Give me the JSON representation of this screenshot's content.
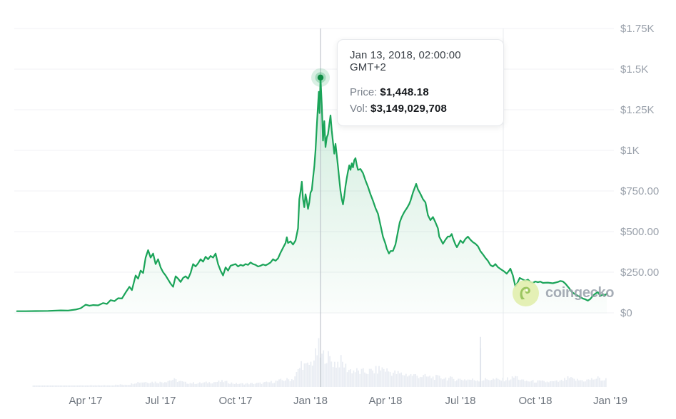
{
  "tooltip": {
    "title": "Jan 13, 2018, 02:00:00 GMT+2",
    "price_label": "Price:",
    "price_value": "$1,448.18",
    "vol_label": "Vol:",
    "vol_value": "$3,149,029,708"
  },
  "watermark": {
    "text": "coingecko",
    "icon": "gecko-icon"
  },
  "chart_data": {
    "type": "line",
    "title": "",
    "legend": false,
    "grid": true,
    "x_axis": {
      "unit": "months_since_jan_2017",
      "tick_labels": [
        "Apr '17",
        "Jul '17",
        "Oct '17",
        "Jan '18",
        "Apr '18",
        "Jul '18",
        "Oct '18",
        "Jan '19"
      ],
      "tick_months": [
        3,
        6,
        9,
        12,
        15,
        18,
        21,
        24
      ],
      "range_months": [
        0.25,
        23.86
      ]
    },
    "y_axis": {
      "unit": "USD",
      "tick_labels": [
        "$0",
        "$250.00",
        "$500.00",
        "$750.00",
        "$1K",
        "$1.25K",
        "$1.5K",
        "$1.75K"
      ],
      "tick_values": [
        0,
        250,
        500,
        750,
        1000,
        1250,
        1500,
        1750
      ],
      "range": [
        0,
        1750
      ],
      "side": "right"
    },
    "highlight": {
      "month": 12.4,
      "date_label": "Jan 13, 2018, 02:00:00 GMT+2",
      "price_usd": 1448.18,
      "volume_usd": 3149029708
    },
    "series": [
      {
        "name": "Price (USD)",
        "points": [
          [
            0.25,
            10
          ],
          [
            0.6,
            10
          ],
          [
            1.0,
            11
          ],
          [
            1.5,
            12
          ],
          [
            2.0,
            15
          ],
          [
            2.3,
            14
          ],
          [
            2.6,
            20
          ],
          [
            2.8,
            28
          ],
          [
            3.0,
            50
          ],
          [
            3.15,
            44
          ],
          [
            3.3,
            48
          ],
          [
            3.5,
            46
          ],
          [
            3.7,
            60
          ],
          [
            3.85,
            55
          ],
          [
            4.0,
            78
          ],
          [
            4.15,
            72
          ],
          [
            4.3,
            90
          ],
          [
            4.45,
            88
          ],
          [
            4.6,
            125
          ],
          [
            4.75,
            160
          ],
          [
            4.85,
            140
          ],
          [
            5.0,
            230
          ],
          [
            5.1,
            210
          ],
          [
            5.2,
            260
          ],
          [
            5.3,
            245
          ],
          [
            5.4,
            340
          ],
          [
            5.5,
            386
          ],
          [
            5.6,
            340
          ],
          [
            5.7,
            365
          ],
          [
            5.8,
            300
          ],
          [
            5.9,
            330
          ],
          [
            6.0,
            280
          ],
          [
            6.1,
            250
          ],
          [
            6.2,
            230
          ],
          [
            6.3,
            205
          ],
          [
            6.4,
            180
          ],
          [
            6.5,
            160
          ],
          [
            6.6,
            225
          ],
          [
            6.7,
            210
          ],
          [
            6.8,
            190
          ],
          [
            6.9,
            215
          ],
          [
            7.0,
            225
          ],
          [
            7.1,
            210
          ],
          [
            7.2,
            245
          ],
          [
            7.3,
            300
          ],
          [
            7.4,
            285
          ],
          [
            7.5,
            305
          ],
          [
            7.6,
            330
          ],
          [
            7.7,
            315
          ],
          [
            7.8,
            345
          ],
          [
            7.9,
            330
          ],
          [
            8.0,
            350
          ],
          [
            8.1,
            340
          ],
          [
            8.2,
            365
          ],
          [
            8.3,
            300
          ],
          [
            8.4,
            260
          ],
          [
            8.5,
            230
          ],
          [
            8.6,
            280
          ],
          [
            8.7,
            260
          ],
          [
            8.8,
            290
          ],
          [
            8.9,
            295
          ],
          [
            9.0,
            300
          ],
          [
            9.1,
            285
          ],
          [
            9.2,
            295
          ],
          [
            9.3,
            290
          ],
          [
            9.4,
            300
          ],
          [
            9.5,
            295
          ],
          [
            9.6,
            310
          ],
          [
            9.7,
            300
          ],
          [
            9.8,
            295
          ],
          [
            9.9,
            285
          ],
          [
            10.0,
            290
          ],
          [
            10.1,
            298
          ],
          [
            10.2,
            292
          ],
          [
            10.3,
            300
          ],
          [
            10.4,
            310
          ],
          [
            10.5,
            330
          ],
          [
            10.6,
            320
          ],
          [
            10.7,
            335
          ],
          [
            10.8,
            370
          ],
          [
            10.9,
            400
          ],
          [
            11.0,
            430
          ],
          [
            11.05,
            465
          ],
          [
            11.1,
            430
          ],
          [
            11.2,
            440
          ],
          [
            11.3,
            420
          ],
          [
            11.4,
            445
          ],
          [
            11.5,
            520
          ],
          [
            11.55,
            700
          ],
          [
            11.6,
            745
          ],
          [
            11.65,
            807
          ],
          [
            11.7,
            700
          ],
          [
            11.75,
            650
          ],
          [
            11.8,
            730
          ],
          [
            11.85,
            690
          ],
          [
            11.9,
            640
          ],
          [
            11.95,
            680
          ],
          [
            12.0,
            740
          ],
          [
            12.05,
            755
          ],
          [
            12.1,
            830
          ],
          [
            12.15,
            900
          ],
          [
            12.2,
            1000
          ],
          [
            12.25,
            1150
          ],
          [
            12.3,
            1280
          ],
          [
            12.33,
            1360
          ],
          [
            12.36,
            1230
          ],
          [
            12.4,
            1448
          ],
          [
            12.45,
            1280
          ],
          [
            12.5,
            1060
          ],
          [
            12.55,
            1180
          ],
          [
            12.6,
            1020
          ],
          [
            12.65,
            1080
          ],
          [
            12.7,
            1100
          ],
          [
            12.75,
            1160
          ],
          [
            12.8,
            1215
          ],
          [
            12.85,
            1120
          ],
          [
            12.9,
            1050
          ],
          [
            12.95,
            980
          ],
          [
            13.0,
            1040
          ],
          [
            13.05,
            970
          ],
          [
            13.1,
            900
          ],
          [
            13.15,
            820
          ],
          [
            13.2,
            750
          ],
          [
            13.25,
            700
          ],
          [
            13.3,
            667
          ],
          [
            13.35,
            720
          ],
          [
            13.4,
            780
          ],
          [
            13.45,
            830
          ],
          [
            13.5,
            870
          ],
          [
            13.55,
            908
          ],
          [
            13.6,
            880
          ],
          [
            13.65,
            920
          ],
          [
            13.7,
            895
          ],
          [
            13.75,
            940
          ],
          [
            13.8,
            952
          ],
          [
            13.85,
            910
          ],
          [
            13.9,
            880
          ],
          [
            14.0,
            885
          ],
          [
            14.1,
            860
          ],
          [
            14.2,
            815
          ],
          [
            14.3,
            776
          ],
          [
            14.4,
            730
          ],
          [
            14.5,
            690
          ],
          [
            14.6,
            645
          ],
          [
            14.7,
            610
          ],
          [
            14.8,
            540
          ],
          [
            14.9,
            469
          ],
          [
            15.0,
            425
          ],
          [
            15.05,
            395
          ],
          [
            15.14,
            365
          ],
          [
            15.2,
            380
          ],
          [
            15.3,
            381
          ],
          [
            15.4,
            420
          ],
          [
            15.5,
            500
          ],
          [
            15.57,
            557
          ],
          [
            15.65,
            590
          ],
          [
            15.75,
            620
          ],
          [
            15.86,
            645
          ],
          [
            15.95,
            670
          ],
          [
            16.0,
            689
          ],
          [
            16.1,
            740
          ],
          [
            16.23,
            794
          ],
          [
            16.3,
            760
          ],
          [
            16.4,
            732
          ],
          [
            16.5,
            700
          ],
          [
            16.6,
            680
          ],
          [
            16.7,
            601
          ],
          [
            16.8,
            570
          ],
          [
            16.9,
            590
          ],
          [
            17.0,
            557
          ],
          [
            17.1,
            520
          ],
          [
            17.15,
            469
          ],
          [
            17.25,
            440
          ],
          [
            17.3,
            425
          ],
          [
            17.4,
            450
          ],
          [
            17.5,
            470
          ],
          [
            17.57,
            469
          ],
          [
            17.65,
            485
          ],
          [
            17.7,
            460
          ],
          [
            17.8,
            420
          ],
          [
            17.86,
            404
          ],
          [
            17.95,
            430
          ],
          [
            18.0,
            445
          ],
          [
            18.1,
            430
          ],
          [
            18.2,
            455
          ],
          [
            18.3,
            469
          ],
          [
            18.4,
            450
          ],
          [
            18.5,
            435
          ],
          [
            18.6,
            425
          ],
          [
            18.7,
            410
          ],
          [
            18.8,
            380
          ],
          [
            18.9,
            360
          ],
          [
            19.0,
            338
          ],
          [
            19.1,
            320
          ],
          [
            19.2,
            294
          ],
          [
            19.3,
            285
          ],
          [
            19.4,
            300
          ],
          [
            19.5,
            281
          ],
          [
            19.6,
            270
          ],
          [
            19.75,
            255
          ],
          [
            19.85,
            241
          ],
          [
            19.95,
            260
          ],
          [
            20.0,
            272
          ],
          [
            20.1,
            230
          ],
          [
            20.2,
            162
          ],
          [
            20.3,
            190
          ],
          [
            20.37,
            215
          ],
          [
            20.5,
            205
          ],
          [
            20.6,
            197
          ],
          [
            20.7,
            205
          ],
          [
            20.8,
            190
          ],
          [
            20.9,
            184
          ],
          [
            21.0,
            193
          ],
          [
            21.1,
            188
          ],
          [
            21.2,
            192
          ],
          [
            21.3,
            184
          ],
          [
            21.5,
            186
          ],
          [
            21.7,
            182
          ],
          [
            21.9,
            190
          ],
          [
            22.0,
            196
          ],
          [
            22.1,
            193
          ],
          [
            22.2,
            180
          ],
          [
            22.34,
            154
          ],
          [
            22.45,
            130
          ],
          [
            22.55,
            118
          ],
          [
            22.7,
            105
          ],
          [
            22.8,
            96
          ],
          [
            22.9,
            88
          ],
          [
            23.0,
            83
          ],
          [
            23.1,
            75
          ],
          [
            23.2,
            85
          ],
          [
            23.3,
            105
          ],
          [
            23.4,
            118
          ],
          [
            23.5,
            127
          ],
          [
            23.6,
            105
          ],
          [
            23.7,
            112
          ],
          [
            23.8,
            110
          ],
          [
            23.86,
            118
          ]
        ]
      }
    ],
    "volume_series": {
      "name": "Volume",
      "unit": "USD_billions_estimated",
      "profile": [
        [
          0.9,
          0.12
        ],
        [
          2,
          0.12
        ],
        [
          3,
          0.15
        ],
        [
          4,
          0.18
        ],
        [
          4.8,
          0.3
        ],
        [
          5,
          0.5
        ],
        [
          5.5,
          0.55
        ],
        [
          6,
          0.5
        ],
        [
          6.5,
          0.8
        ],
        [
          7,
          0.45
        ],
        [
          7.5,
          0.4
        ],
        [
          8,
          0.5
        ],
        [
          8.5,
          0.6
        ],
        [
          9,
          0.35
        ],
        [
          9.5,
          0.35
        ],
        [
          10,
          0.4
        ],
        [
          10.5,
          0.55
        ],
        [
          10.9,
          0.75
        ],
        [
          11.3,
          0.85
        ],
        [
          11.55,
          1.9
        ],
        [
          11.65,
          2.7
        ],
        [
          11.8,
          2.1
        ],
        [
          12,
          2.5
        ],
        [
          12.2,
          3.3
        ],
        [
          12.33,
          4.2
        ],
        [
          12.4,
          3.15
        ],
        [
          12.6,
          3.5
        ],
        [
          12.8,
          2.9
        ],
        [
          13,
          2.5
        ],
        [
          13.2,
          2.8
        ],
        [
          13.5,
          1.9
        ],
        [
          14,
          1.6
        ],
        [
          14.5,
          1.7
        ],
        [
          14.9,
          2.0
        ],
        [
          15.2,
          1.6
        ],
        [
          15.6,
          1.4
        ],
        [
          16.2,
          1.25
        ],
        [
          16.8,
          1.05
        ],
        [
          17.3,
          1.0
        ],
        [
          17.8,
          0.85
        ],
        [
          18.3,
          0.8
        ],
        [
          18.76,
          0.75
        ],
        [
          18.8,
          5.4
        ],
        [
          18.84,
          0.75
        ],
        [
          19.2,
          0.85
        ],
        [
          19.6,
          0.75
        ],
        [
          20.1,
          0.95
        ],
        [
          20.2,
          1.15
        ],
        [
          20.5,
          0.65
        ],
        [
          21,
          0.6
        ],
        [
          21.5,
          0.55
        ],
        [
          22,
          0.6
        ],
        [
          22.34,
          0.95
        ],
        [
          22.6,
          0.75
        ],
        [
          23,
          0.7
        ],
        [
          23.3,
          0.85
        ],
        [
          23.5,
          0.95
        ],
        [
          23.7,
          0.75
        ],
        [
          23.86,
          0.8
        ]
      ]
    },
    "colors": {
      "line": "#1ba459",
      "marker": "#0e8c44",
      "area_top": "rgba(27,164,89,0.22)",
      "area_bottom": "rgba(27,164,89,0.015)",
      "volume_bar": "#e9edf3",
      "gridline": "#f0f1f4",
      "secondary_vline": "#e9ebef",
      "crosshair": "#b4bac3",
      "y_label": "#9aa1ab",
      "x_label": "#6e757e",
      "watermark_circle": "#e2efac",
      "watermark_gecko": "#8fbe4c"
    }
  }
}
